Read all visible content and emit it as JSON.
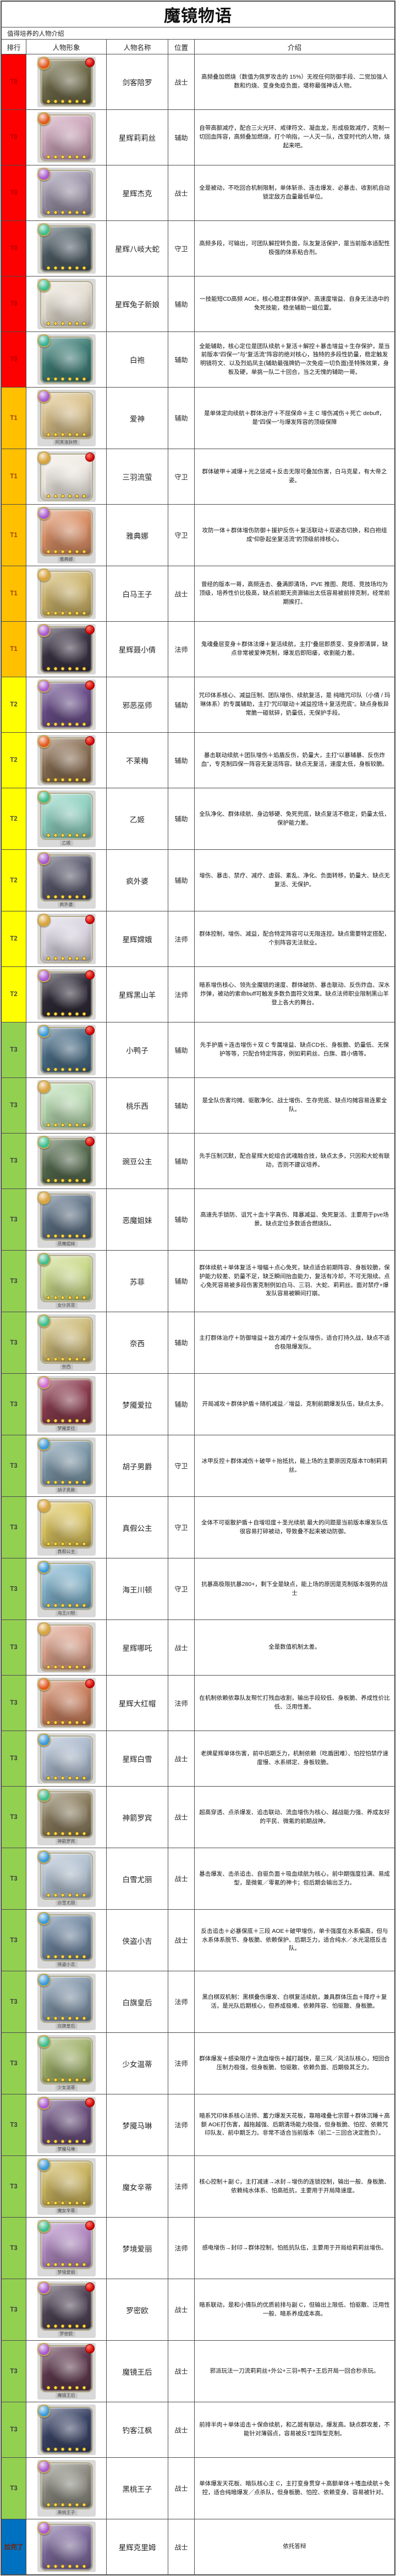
{
  "title": "魔镜物语",
  "subtitle": "值得培养的人物介绍",
  "table": {
    "columns": {
      "rank": "排行",
      "avatar": "人物形象",
      "name": "人物名称",
      "position": "位置",
      "intro": "介绍"
    },
    "tiers": {
      "T0": {
        "bg": "#ff0000",
        "fg": "#b30000"
      },
      "T1": {
        "bg": "#ffc000",
        "fg": "#a34400"
      },
      "T2": {
        "bg": "#ffff00",
        "fg": "#4a4a4a"
      },
      "T3": {
        "bg": "#92d050",
        "fg": "#3f3f3f"
      },
      "拉完了": {
        "bg": "#0070c0",
        "fg": "#7b2000"
      }
    },
    "rows": [
      {
        "tier": "T0",
        "name": "剑客陪罗",
        "position": "战士",
        "intro": "高频叠加燃烧（数值为佩罗攻击的 15%）无视任何防御手段、二觉加强人数和灼烧、变身免疫负面，堪称最强神话人物。",
        "accent": "#6f6b4a",
        "gem": "#e25822",
        "badge": true,
        "caption": ""
      },
      {
        "tier": "T0",
        "name": "星辉莉莉丝",
        "position": "辅助",
        "intro": "自带高额减疗，配合三火光环、戒律符文、凝血龙，形成极致减疗，克制一切回血阵容，高频叠加燃烧，打个响指，一人灭一队，改变时代的人物，烧起来吧。",
        "accent": "#caa3b8",
        "gem": "#e25822",
        "badge": false,
        "caption": ""
      },
      {
        "tier": "T0",
        "name": "星辉杰克",
        "position": "战士",
        "intro": "全是被动，不吃回合机制限制，单体斩杀、连击爆发、必暴击、收割机自动锁定敌方血量最低单位。",
        "accent": "#9b93a8",
        "gem": "#a85ad0",
        "badge": false,
        "caption": ""
      },
      {
        "tier": "T0",
        "name": "星辉八岐大蛇",
        "position": "守卫",
        "intro": "高频多段，可输出，可团队解控转负面，队友复活保护，是当前版本适配性极强的体系粘合剂。",
        "accent": "#4f5d66",
        "gem": "#3dbd8f",
        "badge": false,
        "caption": ""
      },
      {
        "tier": "T0",
        "name": "星辉兔子新娘",
        "position": "辅助",
        "intro": "一技能短CD高频 AOE，核心稳定群体保护、高速度增益、自身无法选中的免死技能，稳坐辅助一姐位置。",
        "accent": "#e5ded2",
        "gem": "#3dbd8f",
        "badge": false,
        "caption": ""
      },
      {
        "tier": "T0",
        "name": "白袍",
        "position": "辅助",
        "intro": "全能辅助，核心定位是团队续航＋复活＋解控＋暴击增益＋生存保护，是当前版本“四保一”与“复活流”阵容的绝对核心，独特的多段性奶量，稳定触发明镜符文、以及烈焰凤主(辅助最强牌奶一次免疫一切负面)圣特殊效果，身板及硬，单挑一队二十回合，当之无愧的辅助一哥。",
        "accent": "#3f7d76",
        "gem": "#35b39a",
        "badge": false,
        "caption": ""
      },
      {
        "tier": "T1",
        "name": "爱神",
        "position": "辅助",
        "intro": "是单体定向续航＋群体治疗＋不屈保命＋主 C 增伤减伤＋死亡 debuff，是“四保一”与爆发阵容的顶级保障",
        "accent": "#d9c08a",
        "gem": "#a85ad0",
        "badge": false,
        "caption": "阿芙洛狄特"
      },
      {
        "tier": "T1",
        "name": "三羽流萤",
        "position": "守卫",
        "intro": "群体破甲＋减爆＋光之惩戒＋反击无限可叠加伤害，白马克星，有大帝之姿。",
        "accent": "#efe9e2",
        "gem": "#d9a441",
        "badge": true,
        "caption": ""
      },
      {
        "tier": "T1",
        "name": "雅典娜",
        "position": "守卫",
        "intro": "攻防一体＋群体增伤防御＋援护反伤＋复活联动＋双姿态切换，和白袍组成“仰卧起坐复活流”的顶级前排核心。",
        "accent": "#d98f66",
        "gem": "#a85ad0",
        "badge": false,
        "caption": "雅典娜"
      },
      {
        "tier": "T1",
        "name": "白马王子",
        "position": "战士",
        "intro": "曾经的版本一哥，高频连击、叠满即清场，PVE 推图、爬塔、竞技场均为顶级，培养性价比极高，缺点前期无资源输出太低容易被前排克制，经常前期挨打。",
        "accent": "#cbb26a",
        "gem": "#d9a441",
        "badge": false,
        "caption": ""
      },
      {
        "tier": "T1",
        "name": "星辉聂小倩",
        "position": "法师",
        "intro": "鬼魂叠层变身＋群体法爆＋复活续航，主打“叠层即质变、变身即清屏，缺点非常被爱神克制，爆发后即阳痿，收割能力差。",
        "accent": "#3a3344",
        "gem": "#a85ad0",
        "badge": true,
        "caption": ""
      },
      {
        "tier": "T2",
        "name": "邪恶巫师",
        "position": "辅助",
        "intro": "咒印体系核心、减益压制、团队增伤、续航复活，是 纯暗咒印队（小倩 / 玛琳体系）的专属辅助，主打“咒印联动＋减益控场＋复活兜底”。缺点身板异常脆一碰就碎，奶量低，无保护手段。",
        "accent": "#6a4f8a",
        "gem": "#a85ad0",
        "badge": true,
        "caption": ""
      },
      {
        "tier": "T2",
        "name": "不莱梅",
        "position": "辅助",
        "intro": "暴击联动续航＋团队增伤＋焰盾反伤，奶量大，主打“以暴辅暴、反伤炸血”，专克制四保一阵容无复活阵容。缺点无复活，速度太低，身板较脆。",
        "accent": "#8a6f54",
        "gem": "#e25822",
        "badge": true,
        "caption": ""
      },
      {
        "tier": "T2",
        "name": "乙姬",
        "position": "辅助",
        "intro": "全队净化、群体续航、身边够硬、免死兜底，缺点复活不稳定，奶量太低，保护能力差。",
        "accent": "#8fd0c0",
        "gem": "#3dbd8f",
        "badge": false,
        "caption": "乙姬"
      },
      {
        "tier": "T2",
        "name": "疯外婆",
        "position": "辅助",
        "intro": "增伤、暴击、禁疗、减疗、虚弱、紊乱、净化、负面转移，奶量大、缺点无复活、无保护。",
        "accent": "#5a5a6e",
        "gem": "#a85ad0",
        "badge": false,
        "caption": "疯外婆"
      },
      {
        "tier": "T2",
        "name": "星辉嫦娥",
        "position": "法师",
        "intro": "群体控制，增伤、减益，配合特定阵容可以无限连控。缺点需要特定搭配，个别阵容无法就业。",
        "accent": "#d8d4e0",
        "gem": "#d9a441",
        "badge": true,
        "caption": ""
      },
      {
        "tier": "T2",
        "name": "星辉黑山羊",
        "position": "法师",
        "intro": "暗系增伤核心、领先全魔镜的速度、群体破防、暴击联动、反伤炸血、深水炸弹，被动的索命buff可触发多数负面符文效果。缺点法师职业限制黑山羊登上各大的舞台。",
        "accent": "#2f2b38",
        "gem": "#a85ad0",
        "badge": true,
        "caption": ""
      },
      {
        "tier": "T3",
        "name": "小鸭子",
        "position": "辅助",
        "intro": "先手护盾＋连击增伤＋双 C 专属增益、缺点CD长、身板脆、奶量低、无保护等等，只配合特定阵容，例如莉莉丝、白旗、聂小倩等。",
        "accent": "#4a6d86",
        "gem": "#3a9ad9",
        "badge": true,
        "caption": ""
      },
      {
        "tier": "T3",
        "name": "桃乐西",
        "position": "辅助",
        "intro": "是全队伤害均摊、驱散净化、战士增伤、生存兜底、缺点均摊容易连累全队。",
        "accent": "#b7d9b0",
        "gem": "#d9a441",
        "badge": false,
        "caption": ""
      },
      {
        "tier": "T3",
        "name": "豌豆公主",
        "position": "辅助",
        "intro": "先手压制沉默，配合星辉大蛇组合武魂融合技，缺点太多，只因和大蛇有联动，否则不建议培养。",
        "accent": "#556b4f",
        "gem": "#3dbd8f",
        "badge": true,
        "caption": ""
      },
      {
        "tier": "T3",
        "name": "恶魔姐妹",
        "position": "辅助",
        "intro": "高速先手锁防、诅咒＋血十字真伤、降暴减益、免死复活、主要用于pve场景。缺点定位多数适合燃烧队。",
        "accent": "#5f7286",
        "gem": "#d9a441",
        "badge": false,
        "caption": "恶魔姐妹"
      },
      {
        "tier": "T3",
        "name": "苏菲",
        "position": "辅助",
        "intro": "群体续航＋单体复活＋增幅＋点心免死，缺点适合前期阵容、身板较脆，保护能力较差、奶量不足，缺乏瞬间抬血能力，复活有冷却，不可无限续。点心免死容易被多段伤害克制例如白马、三羽、大蛇、莉莉丝。面对禁疗+爆发队容易被瞬间打崩。",
        "accent": "#c9d98a",
        "gem": "#3dbd8f",
        "badge": false,
        "caption": "女仆苏菲"
      },
      {
        "tier": "T3",
        "name": "奈西",
        "position": "辅助",
        "intro": "主打群体治疗＋防御增益＋敌方减疗＋全队增伤，适合打持久战，缺点不适合极限爆发队。",
        "accent": "#cbb978",
        "gem": "#3dbd8f",
        "badge": false,
        "caption": "奈西"
      },
      {
        "tier": "T3",
        "name": "梦魇爱拉",
        "position": "辅助",
        "intro": "开局减攻＋群体护盾＋随机减益／增益、克制前期爆发队伍，缺点太多。",
        "accent": "#8a3d4f",
        "gem": "#d06ad0",
        "badge": false,
        "caption": "梦魇爱拉"
      },
      {
        "tier": "T3",
        "name": "胡子男爵",
        "position": "守卫",
        "intro": "冰甲反控＋群体减伤＋破甲＋抬抵抗，能上场的主要原因克版本T0制莉莉丝。",
        "accent": "#7d97a8",
        "gem": "#3a9ad9",
        "badge": false,
        "caption": "胡子男爵"
      },
      {
        "tier": "T3",
        "name": "真假公主",
        "position": "守卫",
        "intro": "全体不可驱散护盾＋自增坦度＋圣光续航 最大的问题是当前版本爆发队伍很容易打碎被动，导致叠不起来被动防御。",
        "accent": "#d9c25f",
        "gem": "#d9a441",
        "badge": false,
        "caption": "真假公主"
      },
      {
        "tier": "T3",
        "name": "海王川顿",
        "position": "守卫",
        "intro": "抗暴高极限抗暴280+，剩下全是缺点，能上场的原因是克制版本强势的战士",
        "accent": "#7fb0c9",
        "gem": "#3a9ad9",
        "badge": false,
        "caption": "海王川顿"
      },
      {
        "tier": "T3",
        "name": "星辉哪吒",
        "position": "战士",
        "intro": "全是数值机制太差。",
        "accent": "#d9a08a",
        "gem": "#d9a441",
        "badge": false,
        "caption": ""
      },
      {
        "tier": "T3",
        "name": "星辉大红帽",
        "position": "法师",
        "intro": "在机制依赖依靠队友帮忙打残血收割，输出手段较低、身板脆、养成性价比低、泛用性差。",
        "accent": "#c9805f",
        "gem": "#e25822",
        "badge": true,
        "caption": ""
      },
      {
        "tier": "T3",
        "name": "星辉白雪",
        "position": "战士",
        "intro": "老牌星辉单体伤害，前中后期乏力，机制依赖（吃盾困难）、怕控怕禁疗速度慢、水系绑定、身板较脆。",
        "accent": "#aab8cb",
        "gem": "#3a9ad9",
        "badge": false,
        "caption": ""
      },
      {
        "tier": "T3",
        "name": "神箭罗宾",
        "position": "战士",
        "intro": "超高穿透、点杀爆发、追击联动、流血增伤为核心、越战能力强、养成友好的平民、微氪的前期战神。",
        "accent": "#8a7d5f",
        "gem": "#3dbd8f",
        "badge": false,
        "caption": "神箭罗宾"
      },
      {
        "tier": "T3",
        "name": "白雪尤丽",
        "position": "战士",
        "intro": "暴击爆发、击杀追击、自驱负面＋吸血续航为核心，前中期强度拉满、易成型，是微氪／零氪的神卡；但后期会输出乏力。",
        "accent": "#b0bfcf",
        "gem": "#3a9ad9",
        "badge": false,
        "caption": "白雪尤丽"
      },
      {
        "tier": "T3",
        "name": "侠盗小吉",
        "position": "战士",
        "intro": "反击追击＋必暴保底＋三段 AOE＋破甲增伤，单卡强度在水系偏高，但与水系体系脱节、身板脆、依赖保护、后期乏力，适合纯水／水光混搭反击队。",
        "accent": "#6f86a0",
        "gem": "#3a9ad9",
        "badge": false,
        "caption": "侠盗小吉"
      },
      {
        "tier": "T3",
        "name": "白旗皇后",
        "position": "法师",
        "intro": "黑白棋双机制：黑棋叠伤爆发、白棋复活续航，兼具群体压血＋降疗＋复活，是光队后期核心，但养成极难、依赖阵容、怕驱散、身板脆。",
        "accent": "#8094a8",
        "gem": "#3a9ad9",
        "badge": false,
        "caption": "白旗皇后"
      },
      {
        "tier": "T3",
        "name": "少女温蒂",
        "position": "法师",
        "intro": "群体爆发＋感染限疗＋流血增伤＋越打越快，是三风／风法队核心，短回合压制力极强，但身板脆、怕驱散、依赖负面、后期极其乏力。",
        "accent": "#9fb06a",
        "gem": "#3dbd8f",
        "badge": false,
        "caption": "少女温蒂"
      },
      {
        "tier": "T3",
        "name": "梦魇马琳",
        "position": "法师",
        "intro": "暗系咒印体系核心法师、蓄力爆发天花板，靠暗魂叠七宗罪＋群体沉睡＋高额 AOE打伤害，越拖越强、后期清场能力极强，但身板脆、怕控、依赖咒印队友、前中期乏力。非常不适合当前版本（前二~三回合决定胜负）。",
        "accent": "#6a4f7d",
        "gem": "#a85ad0",
        "badge": true,
        "caption": "梦魇马琳"
      },
      {
        "tier": "T3",
        "name": "魔女辛蒂",
        "position": "法师",
        "intro": "核心控制＋副 C，主打减速→冰封→增伤的连锁控制，输出一般、身板脆、依赖纯水体系、怕高抵抗，主要用于开局降速度。",
        "accent": "#c9b35f",
        "gem": "#3a9ad9",
        "badge": false,
        "caption": "魔女辛蒂"
      },
      {
        "tier": "T3",
        "name": "梦境爱丽",
        "position": "法师",
        "intro": "感电增伤→封印→群体控制，怕抵抗队伍，主要用于开局给莉莉丝增伤。",
        "accent": "#b089c0",
        "gem": "#3dbd8f",
        "badge": true,
        "caption": "梦境爱丽"
      },
      {
        "tier": "T3",
        "name": "罗密欧",
        "position": "战士",
        "intro": "暗系联动，是和小倩队的优质前排与副 C，但输出上限低、怕驱散、泛用性一般、暗系养成成本高。",
        "accent": "#4f4456",
        "gem": "#a85ad0",
        "badge": true,
        "caption": "罗密欧"
      },
      {
        "tier": "T3",
        "name": "魔镜王后",
        "position": "战士",
        "intro": "邪派玩法一刀流莉莉丝+外公+三羽+鸭子+王后开局一回合秒杀玩。",
        "accent": "#5f3a4f",
        "gem": "#a85ad0",
        "badge": true,
        "caption": "魔镜王后"
      },
      {
        "tier": "T3",
        "name": "钓客江枫",
        "position": "战士",
        "intro": "前排半肉＋单体追击＋保命续航，和乙姬有联动，爆发高。缺点群攻差，不能针对薄弱点，容易被反T型阵型克制。",
        "accent": "#3a4466",
        "gem": "#3a9ad9",
        "badge": false,
        "caption": ""
      },
      {
        "tier": "T3",
        "name": "黑桃王子",
        "position": "战士",
        "intro": "单体爆发天花板、暗队核心主 C，主打变身贯穿＋高额单体＋嗜血续航＋免控，适合纯暗爆发／点杀队，但身板脆、怕控、依赖变身、容易被针对。",
        "accent": "#8a8a80",
        "gem": "#a85ad0",
        "badge": false,
        "caption": "黑桃王子"
      },
      {
        "tier": "拉完了",
        "name": "星辉克里姆",
        "position": "战士",
        "intro": "依托答辩",
        "accent": "#7d6a9b",
        "gem": "#a85ad0",
        "badge": false,
        "caption": ""
      }
    ]
  }
}
